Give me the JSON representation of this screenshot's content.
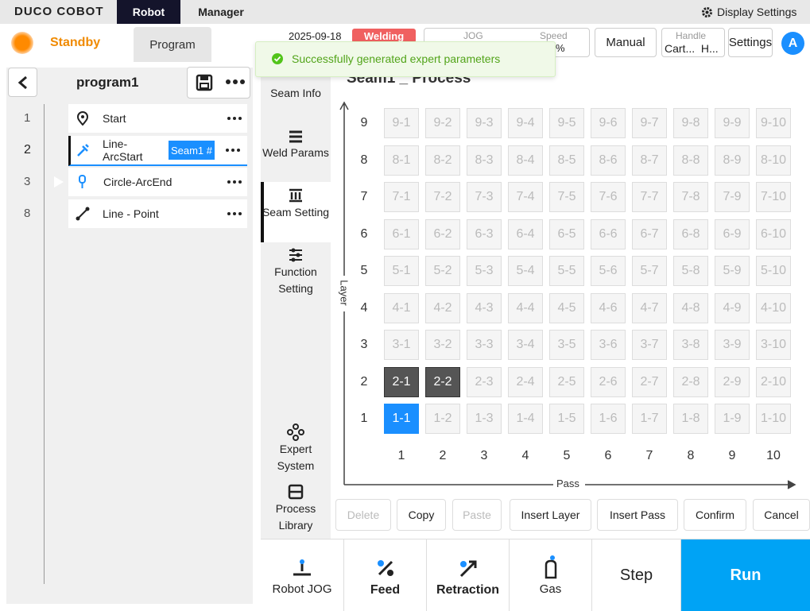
{
  "top_bar": {
    "logo": "DUCO COBOT",
    "tabs": [
      "Robot",
      "Manager"
    ],
    "display_settings": "Display Settings"
  },
  "status_bar": {
    "state": "Standby",
    "program_tab": "Program",
    "date": "2025-09-18",
    "mode_badge": "Welding",
    "jog_label": "JOG",
    "speed_label": "Speed",
    "speed_value": "%",
    "manual": "Manual",
    "handle_label": "Handle",
    "handle_value": "Cart...  H...",
    "settings": "Settings",
    "avatar": "A"
  },
  "toast": "Successfully generated expert parameters",
  "program": {
    "name": "program1",
    "lines": [
      {
        "number": "1",
        "label": "Start"
      },
      {
        "number": "2",
        "label": "Line-ArcStart",
        "tag": "Seam1 #"
      },
      {
        "number": "3",
        "label": "Circle-ArcEnd"
      },
      {
        "number": "8",
        "label": "Line - Point"
      }
    ]
  },
  "side_menu": [
    "Seam Info",
    "Weld Params",
    "Seam Setting",
    "Function Setting",
    "Expert System",
    "Process Library"
  ],
  "seam_panel": {
    "title": "Seam1 _ Process",
    "y_axis": "Layer",
    "x_axis": "Pass",
    "layers": [
      "9",
      "8",
      "7",
      "6",
      "5",
      "4",
      "3",
      "2",
      "1"
    ],
    "passes": [
      "1",
      "2",
      "3",
      "4",
      "5",
      "6",
      "7",
      "8",
      "9",
      "10"
    ],
    "cells": [
      [
        "9-1",
        "9-2",
        "9-3",
        "9-4",
        "9-5",
        "9-6",
        "9-7",
        "9-8",
        "9-9",
        "9-10"
      ],
      [
        "8-1",
        "8-2",
        "8-3",
        "8-4",
        "8-5",
        "8-6",
        "8-7",
        "8-8",
        "8-9",
        "8-10"
      ],
      [
        "7-1",
        "7-2",
        "7-3",
        "7-4",
        "7-5",
        "7-6",
        "7-7",
        "7-8",
        "7-9",
        "7-10"
      ],
      [
        "6-1",
        "6-2",
        "6-3",
        "6-4",
        "6-5",
        "6-6",
        "6-7",
        "6-8",
        "6-9",
        "6-10"
      ],
      [
        "5-1",
        "5-2",
        "5-3",
        "5-4",
        "5-5",
        "5-6",
        "5-7",
        "5-8",
        "5-9",
        "5-10"
      ],
      [
        "4-1",
        "4-2",
        "4-3",
        "4-4",
        "4-5",
        "4-6",
        "4-7",
        "4-8",
        "4-9",
        "4-10"
      ],
      [
        "3-1",
        "3-2",
        "3-3",
        "3-4",
        "3-5",
        "3-6",
        "3-7",
        "3-8",
        "3-9",
        "3-10"
      ],
      [
        "2-1",
        "2-2",
        "2-3",
        "2-4",
        "2-5",
        "2-6",
        "2-7",
        "2-8",
        "2-9",
        "2-10"
      ],
      [
        "1-1",
        "1-2",
        "1-3",
        "1-4",
        "1-5",
        "1-6",
        "1-7",
        "1-8",
        "1-9",
        "1-10"
      ]
    ],
    "filled_cells": [
      [
        7,
        0
      ],
      [
        7,
        1
      ]
    ],
    "selected_cells": [
      [
        8,
        0
      ]
    ],
    "buttons": [
      "Delete",
      "Copy",
      "Paste",
      "Insert Layer",
      "Insert Pass",
      "Confirm",
      "Cancel"
    ],
    "disabled_buttons": [
      0,
      2
    ]
  },
  "bottom_bar": [
    "Robot JOG",
    "Feed",
    "Retraction",
    "Gas",
    "Step",
    "Run"
  ]
}
